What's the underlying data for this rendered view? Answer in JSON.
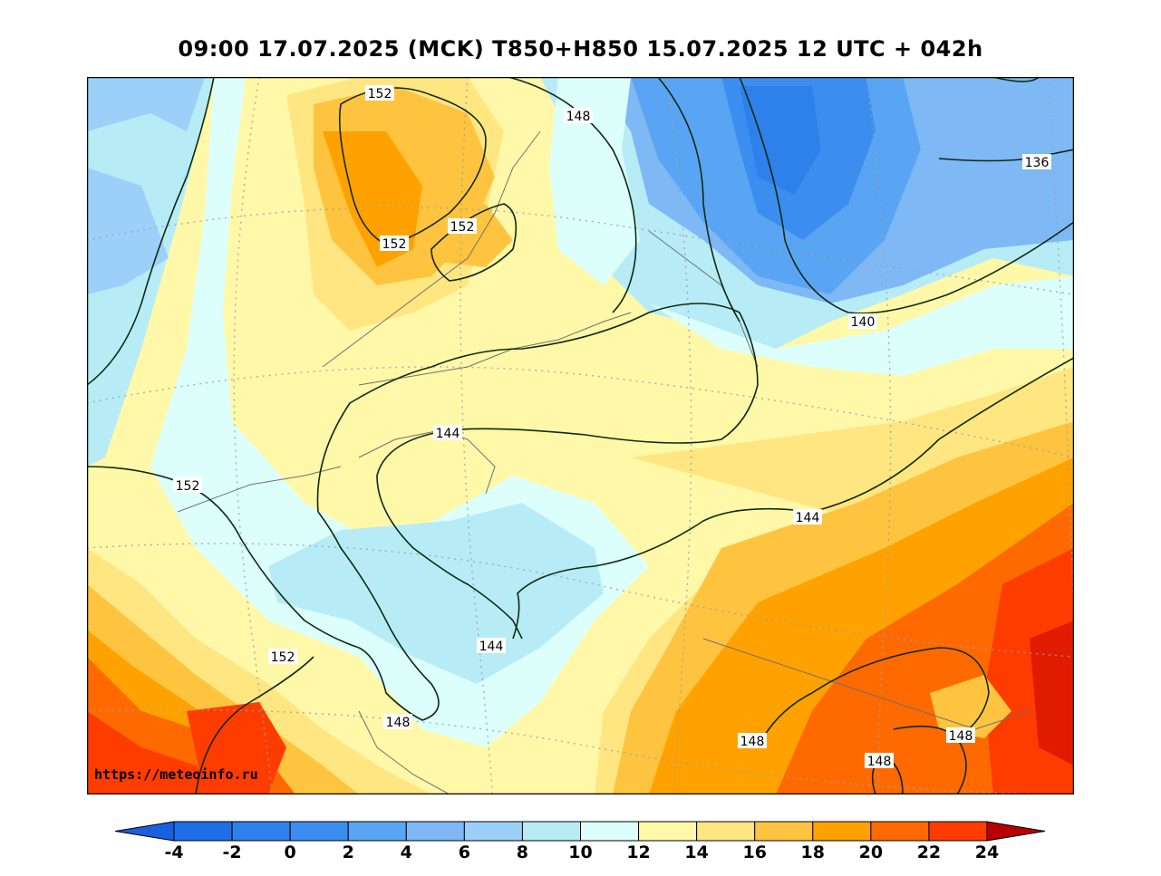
{
  "title": "09:00 17.07.2025 (MCK) T850+H850 15.07.2025 12 UTC + 042h",
  "watermark": "https://meteoinfo.ru",
  "map": {
    "variable": "T850 temperature with H850 geopotential height contours",
    "contour_labels": [
      "152",
      "148",
      "152",
      "152",
      "136",
      "140",
      "144",
      "152",
      "144",
      "148",
      "152",
      "144",
      "148",
      "148",
      "148"
    ]
  },
  "colorbar": {
    "ticks": [
      "-4",
      "-2",
      "0",
      "2",
      "4",
      "6",
      "8",
      "10",
      "12",
      "14",
      "16",
      "18",
      "20",
      "22",
      "24"
    ],
    "colors": [
      "#1f6fe6",
      "#2e80ea",
      "#3b8eef",
      "#5aa5f3",
      "#7eb9f6",
      "#9dd0f8",
      "#b7ecf7",
      "#dcfffc",
      "#fff8a8",
      "#ffe680",
      "#ffc43f",
      "#ffa200",
      "#ff6a00",
      "#ff3c00",
      "#e01c00"
    ],
    "under_color": "#1a5fdd",
    "over_color": "#b80000"
  }
}
